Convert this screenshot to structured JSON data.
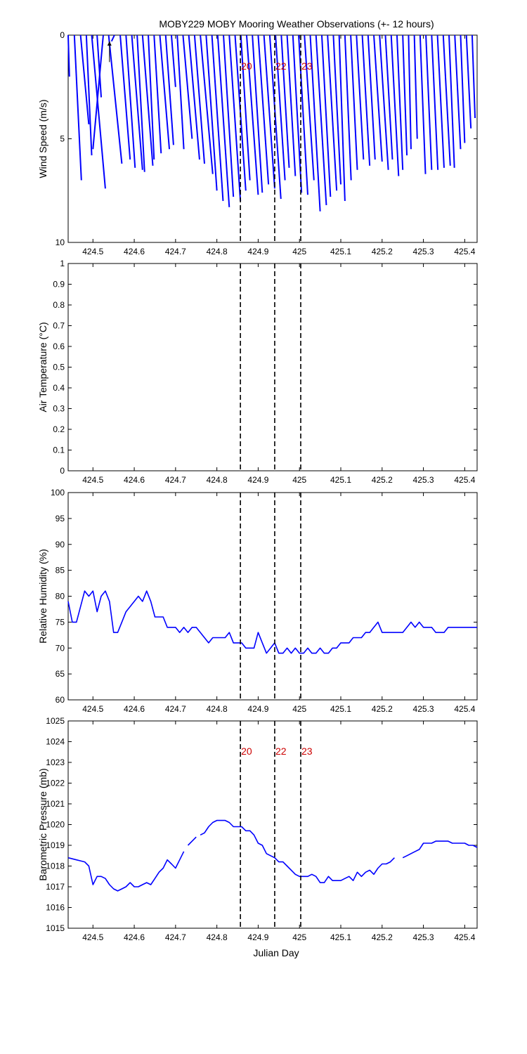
{
  "title": "MOBY229 MOBY Mooring Weather Observations (+- 12 hours)",
  "xlabel": "Julian Day",
  "colors": {
    "data": "#0000ff",
    "marker_text": "#cc0000",
    "axes": "#000000"
  },
  "markers": {
    "x": [
      424.857,
      424.94,
      425.003
    ],
    "labels": [
      "20",
      "22",
      "23"
    ]
  },
  "chart_data": [
    {
      "type": "line",
      "name": "wind",
      "ylabel": "Wind Speed (m/s)",
      "xlim": [
        424.44,
        425.43
      ],
      "ylim": [
        0,
        10
      ],
      "y_reversed": true,
      "x_ticks": [
        "424.5",
        "424.6",
        "424.7",
        "424.8",
        "424.9",
        "425",
        "425.1",
        "425.2",
        "425.3",
        "425.4"
      ],
      "y_ticks": [
        "0",
        "5",
        "10"
      ],
      "marker_labels_shown": true,
      "sticks": [
        {
          "x": 424.44,
          "tip_x": 424.443,
          "speed": 2.0
        },
        {
          "x": 424.455,
          "tip_x": 424.472,
          "speed": 7.0
        },
        {
          "x": 424.47,
          "tip_x": 424.49,
          "speed": 4.3
        },
        {
          "x": 424.484,
          "tip_x": 424.497,
          "speed": 5.8
        },
        {
          "x": 424.497,
          "tip_x": 424.53,
          "speed": 7.4
        },
        {
          "x": 424.51,
          "tip_x": 424.52,
          "speed": 3.0
        },
        {
          "x": 424.525,
          "tip_x": 424.5,
          "speed": 5.5
        },
        {
          "x": 424.538,
          "tip_x": 424.57,
          "speed": 6.2
        },
        {
          "x": 424.552,
          "tip_x": 424.545,
          "speed": 0.3
        },
        {
          "x": 424.566,
          "tip_x": 424.59,
          "speed": 6.0
        },
        {
          "x": 424.58,
          "tip_x": 424.602,
          "speed": 6.4
        },
        {
          "x": 424.594,
          "tip_x": 424.62,
          "speed": 6.5
        },
        {
          "x": 424.607,
          "tip_x": 424.625,
          "speed": 6.6
        },
        {
          "x": 424.62,
          "tip_x": 424.645,
          "speed": 6.3
        },
        {
          "x": 424.634,
          "tip_x": 424.648,
          "speed": 6.0
        },
        {
          "x": 424.648,
          "tip_x": 424.665,
          "speed": 5.7
        },
        {
          "x": 424.662,
          "tip_x": 424.685,
          "speed": 5.5
        },
        {
          "x": 424.676,
          "tip_x": 424.695,
          "speed": 5.3
        },
        {
          "x": 424.69,
          "tip_x": 424.7,
          "speed": 2.5
        },
        {
          "x": 424.704,
          "tip_x": 424.72,
          "speed": 5.5
        },
        {
          "x": 424.718,
          "tip_x": 424.74,
          "speed": 5.0
        },
        {
          "x": 424.732,
          "tip_x": 424.758,
          "speed": 6.0
        },
        {
          "x": 424.746,
          "tip_x": 424.77,
          "speed": 6.2
        },
        {
          "x": 424.76,
          "tip_x": 424.79,
          "speed": 6.7
        },
        {
          "x": 424.774,
          "tip_x": 424.8,
          "speed": 7.5
        },
        {
          "x": 424.788,
          "tip_x": 424.815,
          "speed": 8.0
        },
        {
          "x": 424.802,
          "tip_x": 424.83,
          "speed": 8.3
        },
        {
          "x": 424.816,
          "tip_x": 424.84,
          "speed": 7.8
        },
        {
          "x": 424.83,
          "tip_x": 424.857,
          "speed": 8.0
        },
        {
          "x": 424.844,
          "tip_x": 424.87,
          "speed": 7.5
        },
        {
          "x": 424.858,
          "tip_x": 424.88,
          "speed": 7.0
        },
        {
          "x": 424.872,
          "tip_x": 424.9,
          "speed": 7.7
        },
        {
          "x": 424.886,
          "tip_x": 424.91,
          "speed": 7.6
        },
        {
          "x": 424.9,
          "tip_x": 424.925,
          "speed": 7.2
        },
        {
          "x": 424.914,
          "tip_x": 424.94,
          "speed": 7.4
        },
        {
          "x": 424.928,
          "tip_x": 424.955,
          "speed": 7.9
        },
        {
          "x": 424.942,
          "tip_x": 424.965,
          "speed": 7.0
        },
        {
          "x": 424.956,
          "tip_x": 424.975,
          "speed": 6.4
        },
        {
          "x": 424.97,
          "tip_x": 424.99,
          "speed": 6.8
        },
        {
          "x": 424.984,
          "tip_x": 425.005,
          "speed": 7.6
        },
        {
          "x": 424.998,
          "tip_x": 425.02,
          "speed": 7.7
        },
        {
          "x": 425.012,
          "tip_x": 425.035,
          "speed": 7.0
        },
        {
          "x": 425.026,
          "tip_x": 425.05,
          "speed": 8.5
        },
        {
          "x": 425.04,
          "tip_x": 425.065,
          "speed": 8.2
        },
        {
          "x": 425.054,
          "tip_x": 425.075,
          "speed": 7.8
        },
        {
          "x": 425.068,
          "tip_x": 425.09,
          "speed": 7.5
        },
        {
          "x": 425.082,
          "tip_x": 425.1,
          "speed": 7.2
        },
        {
          "x": 425.096,
          "tip_x": 425.11,
          "speed": 8.0
        },
        {
          "x": 425.11,
          "tip_x": 425.125,
          "speed": 7.0
        },
        {
          "x": 425.124,
          "tip_x": 425.14,
          "speed": 6.5
        },
        {
          "x": 425.138,
          "tip_x": 425.155,
          "speed": 6.0
        },
        {
          "x": 425.152,
          "tip_x": 425.17,
          "speed": 6.3
        },
        {
          "x": 425.166,
          "tip_x": 425.183,
          "speed": 6.0
        },
        {
          "x": 425.18,
          "tip_x": 425.2,
          "speed": 6.1
        },
        {
          "x": 425.194,
          "tip_x": 425.215,
          "speed": 6.5
        },
        {
          "x": 425.208,
          "tip_x": 425.225,
          "speed": 6.0
        },
        {
          "x": 425.222,
          "tip_x": 425.24,
          "speed": 6.8
        },
        {
          "x": 425.236,
          "tip_x": 425.25,
          "speed": 6.5
        },
        {
          "x": 425.25,
          "tip_x": 425.26,
          "speed": 5.8
        },
        {
          "x": 425.264,
          "tip_x": 425.27,
          "speed": 5.5
        },
        {
          "x": 425.278,
          "tip_x": 425.285,
          "speed": 5.0
        },
        {
          "x": 425.292,
          "tip_x": 425.305,
          "speed": 6.7
        },
        {
          "x": 425.306,
          "tip_x": 425.32,
          "speed": 6.5
        },
        {
          "x": 425.32,
          "tip_x": 425.335,
          "speed": 6.5
        },
        {
          "x": 425.334,
          "tip_x": 425.35,
          "speed": 6.4
        },
        {
          "x": 425.348,
          "tip_x": 425.365,
          "speed": 6.3
        },
        {
          "x": 425.362,
          "tip_x": 425.375,
          "speed": 6.4
        },
        {
          "x": 425.376,
          "tip_x": 425.39,
          "speed": 5.5
        },
        {
          "x": 425.39,
          "tip_x": 425.4,
          "speed": 5.2
        },
        {
          "x": 425.404,
          "tip_x": 425.415,
          "speed": 4.5
        },
        {
          "x": 425.418,
          "tip_x": 425.425,
          "speed": 4.0
        }
      ]
    },
    {
      "type": "line",
      "name": "air_temperature",
      "ylabel": "Air Temperature (°C)",
      "xlim": [
        424.44,
        425.43
      ],
      "ylim": [
        0,
        1
      ],
      "x_ticks": [
        "424.5",
        "424.6",
        "424.7",
        "424.8",
        "424.9",
        "425",
        "425.1",
        "425.2",
        "425.3",
        "425.4"
      ],
      "y_ticks": [
        "0",
        "0.1",
        "0.2",
        "0.3",
        "0.4",
        "0.5",
        "0.6",
        "0.7",
        "0.8",
        "0.9",
        "1"
      ],
      "x": [],
      "y": []
    },
    {
      "type": "line",
      "name": "relative_humidity",
      "ylabel": "Relative Humidity (%)",
      "xlim": [
        424.44,
        425.43
      ],
      "ylim": [
        60,
        100
      ],
      "x_ticks": [
        "424.5",
        "424.6",
        "424.7",
        "424.8",
        "424.9",
        "425",
        "425.1",
        "425.2",
        "425.3",
        "425.4"
      ],
      "y_ticks": [
        "60",
        "65",
        "70",
        "75",
        "80",
        "85",
        "90",
        "95",
        "100"
      ],
      "x": [
        424.44,
        424.45,
        424.46,
        424.48,
        424.49,
        424.5,
        424.51,
        424.52,
        424.53,
        424.54,
        424.55,
        424.56,
        424.57,
        424.58,
        424.59,
        424.6,
        424.61,
        424.62,
        424.63,
        424.64,
        424.65,
        424.66,
        424.67,
        424.68,
        424.69,
        424.7,
        424.71,
        424.72,
        424.73,
        424.74,
        424.75,
        424.76,
        424.77,
        424.78,
        424.79,
        424.8,
        424.81,
        424.82,
        424.83,
        424.84,
        424.85,
        424.86,
        424.87,
        424.88,
        424.89,
        424.9,
        424.91,
        424.92,
        424.93,
        424.94,
        424.95,
        424.96,
        424.97,
        424.98,
        424.99,
        425.0,
        425.01,
        425.02,
        425.03,
        425.04,
        425.05,
        425.06,
        425.07,
        425.08,
        425.09,
        425.1,
        425.11,
        425.12,
        425.13,
        425.14,
        425.15,
        425.16,
        425.17,
        425.18,
        425.19,
        425.2,
        425.21,
        425.22,
        425.23,
        425.24,
        425.25,
        425.26,
        425.27,
        425.28,
        425.29,
        425.3,
        425.31,
        425.32,
        425.33,
        425.34,
        425.35,
        425.36,
        425.37,
        425.38,
        425.39,
        425.4,
        425.41,
        425.42,
        425.43
      ],
      "y": [
        79,
        75,
        75,
        81,
        80,
        81,
        77,
        80,
        81,
        79,
        73,
        73,
        75,
        77,
        78,
        79,
        80,
        79,
        81,
        79,
        76,
        76,
        76,
        74,
        74,
        74,
        73,
        74,
        73,
        74,
        74,
        73,
        72,
        71,
        72,
        72,
        72,
        72,
        73,
        71,
        71,
        71,
        70,
        70,
        70,
        73,
        71,
        69,
        70,
        71,
        69,
        69,
        70,
        69,
        70,
        69,
        69,
        70,
        69,
        69,
        70,
        69,
        69,
        70,
        70,
        71,
        71,
        71,
        72,
        72,
        72,
        73,
        73,
        74,
        75,
        73,
        73,
        73,
        73,
        73,
        73,
        74,
        75,
        74,
        75,
        74,
        74,
        74,
        73,
        73,
        73,
        74,
        74,
        74,
        74,
        74,
        74,
        74,
        74
      ]
    },
    {
      "type": "line",
      "name": "barometric_pressure",
      "ylabel": "Barometric Pressure (mb)",
      "xlim": [
        424.44,
        425.43
      ],
      "ylim": [
        1015,
        1025
      ],
      "x_ticks": [
        "424.5",
        "424.6",
        "424.7",
        "424.8",
        "424.9",
        "425",
        "425.1",
        "425.2",
        "425.3",
        "425.4"
      ],
      "y_ticks": [
        "1015",
        "1016",
        "1017",
        "1018",
        "1019",
        "1020",
        "1021",
        "1022",
        "1023",
        "1024",
        "1025"
      ],
      "marker_labels_shown": true,
      "segments": [
        {
          "x": [
            424.44,
            424.45,
            424.46,
            424.47,
            424.48,
            424.49,
            424.5,
            424.51,
            424.52,
            424.53,
            424.54,
            424.55,
            424.56,
            424.57,
            424.58,
            424.59,
            424.6,
            424.61,
            424.62,
            424.63,
            424.64,
            424.65,
            424.66,
            424.67,
            424.68,
            424.69,
            424.7,
            424.71,
            424.72
          ],
          "y": [
            1018.4,
            1018.35,
            1018.3,
            1018.25,
            1018.2,
            1018.0,
            1017.1,
            1017.5,
            1017.5,
            1017.4,
            1017.1,
            1016.9,
            1016.8,
            1016.9,
            1017.0,
            1017.2,
            1017.0,
            1017.0,
            1017.1,
            1017.2,
            1017.1,
            1017.4,
            1017.7,
            1017.9,
            1018.3,
            1018.1,
            1017.9,
            1018.3,
            1018.7
          ]
        },
        {
          "x": [
            424.73,
            424.74,
            424.75
          ],
          "y": [
            1019.0,
            1019.2,
            1019.4
          ]
        },
        {
          "x": [
            424.76,
            424.77,
            424.78,
            424.79,
            424.8,
            424.81,
            424.82,
            424.83,
            424.84,
            424.85,
            424.86,
            424.87,
            424.88,
            424.89,
            424.9,
            424.91,
            424.92,
            424.93,
            424.94,
            424.95,
            424.96,
            424.97,
            424.98,
            424.99,
            425.0,
            425.01,
            425.02,
            425.03,
            425.04,
            425.05,
            425.06,
            425.07,
            425.08,
            425.09,
            425.1,
            425.11,
            425.12,
            425.13,
            425.14,
            425.15,
            425.16,
            425.17,
            425.18,
            425.19,
            425.2,
            425.21,
            425.22,
            425.23
          ],
          "y": [
            1019.5,
            1019.6,
            1019.9,
            1020.1,
            1020.2,
            1020.2,
            1020.2,
            1020.1,
            1019.9,
            1019.9,
            1019.9,
            1019.7,
            1019.7,
            1019.5,
            1019.1,
            1019.0,
            1018.6,
            1018.5,
            1018.4,
            1018.2,
            1018.2,
            1018.0,
            1017.8,
            1017.6,
            1017.5,
            1017.5,
            1017.5,
            1017.6,
            1017.5,
            1017.2,
            1017.2,
            1017.5,
            1017.3,
            1017.3,
            1017.3,
            1017.4,
            1017.5,
            1017.3,
            1017.7,
            1017.5,
            1017.7,
            1017.8,
            1017.6,
            1017.9,
            1018.1,
            1018.1,
            1018.2,
            1018.4
          ]
        },
        {
          "x": [
            425.25,
            425.26,
            425.27,
            425.28,
            425.29,
            425.3,
            425.31,
            425.32,
            425.33,
            425.34,
            425.35,
            425.36,
            425.37,
            425.38,
            425.39,
            425.4,
            425.41,
            425.42,
            425.43
          ],
          "y": [
            1018.4,
            1018.5,
            1018.6,
            1018.7,
            1018.8,
            1019.1,
            1019.1,
            1019.1,
            1019.2,
            1019.2,
            1019.2,
            1019.2,
            1019.1,
            1019.1,
            1019.1,
            1019.1,
            1019.0,
            1019.0,
            1018.9
          ]
        }
      ]
    }
  ]
}
